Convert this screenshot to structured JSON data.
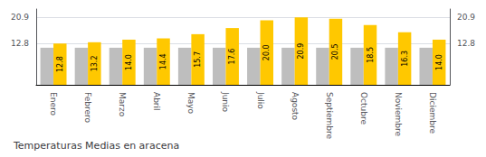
{
  "chart_data": {
    "type": "bar",
    "title": "Temperaturas Medias en aracena",
    "categories": [
      "Enero",
      "Febrero",
      "Marzo",
      "Abril",
      "Mayo",
      "Junio",
      "Julio",
      "Agosto",
      "Septiembre",
      "Octubre",
      "Noviembre",
      "Diciembre"
    ],
    "series": [
      {
        "color": "#BEBEBE",
        "values": [
          11.5,
          11.5,
          11.5,
          11.5,
          11.5,
          11.5,
          11.5,
          11.5,
          11.5,
          11.5,
          11.5,
          11.5
        ]
      },
      {
        "color": "#FFC800",
        "values": [
          12.8,
          13.2,
          14.0,
          14.4,
          15.7,
          17.6,
          20.0,
          20.9,
          20.5,
          18.5,
          16.3,
          14.0
        ],
        "value_labels": [
          "12.8",
          "13.2",
          "14.0",
          "14.4",
          "15.7",
          "17.6",
          "20.0",
          "20.9",
          "20.5",
          "18.5",
          "16.3",
          "14.0"
        ]
      }
    ],
    "ylim": [
      0,
      23.5
    ],
    "yticks": [
      12.8,
      20.9
    ],
    "y2lim": [
      0,
      23.5
    ],
    "y2ticks": [
      12.8,
      20.9
    ],
    "grid": true,
    "data_labels": true
  }
}
